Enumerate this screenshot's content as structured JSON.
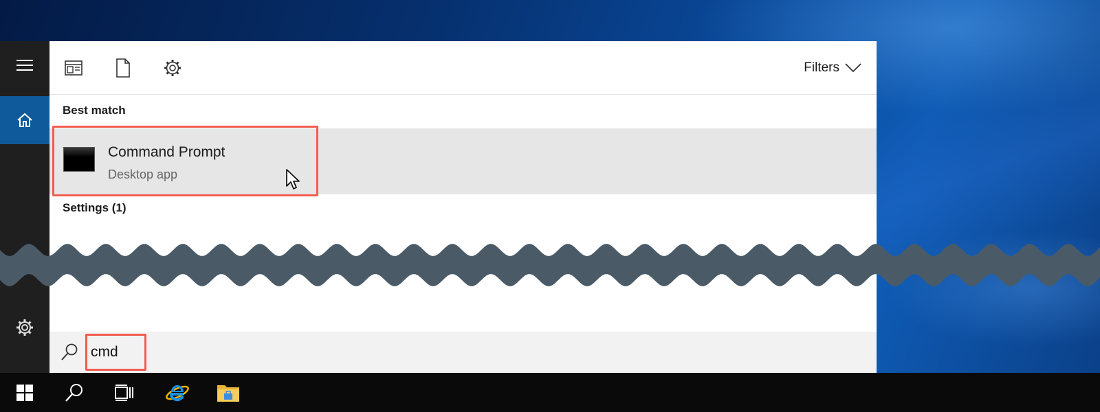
{
  "filters": {
    "label": "Filters"
  },
  "results": {
    "best_match_title": "Best match",
    "best_match": {
      "name": "Command Prompt",
      "type": "Desktop app"
    },
    "settings_title": "Settings (1)"
  },
  "search": {
    "value": "cmd"
  },
  "colors": {
    "highlight": "#f25c4f",
    "rail": "#1f1f1f",
    "home_active": "#0f5a9a",
    "taskbar": "#0a0a0a",
    "break_band": "#4a5b67"
  },
  "icons": {
    "rail": [
      "hamburger-menu-icon",
      "home-icon",
      "settings-gear-icon"
    ],
    "top": [
      "apps-icon",
      "documents-icon",
      "settings-icon"
    ],
    "taskbar": [
      "windows-start-icon",
      "search-icon",
      "task-view-icon",
      "internet-explorer-icon",
      "file-explorer-icon"
    ]
  }
}
